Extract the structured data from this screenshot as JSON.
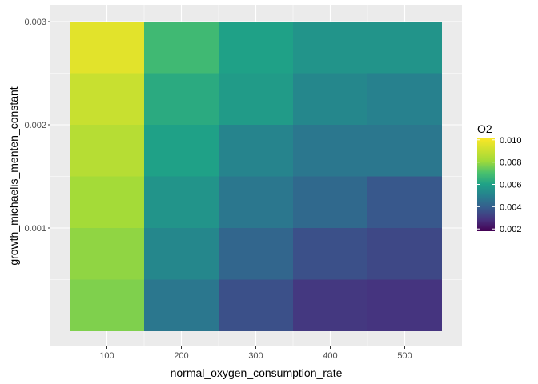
{
  "chart_data": {
    "type": "heatmap",
    "title": "",
    "xlabel": "normal_oxygen_consumption_rate",
    "ylabel": "growth_michaelis_menten_constant",
    "x": [
      100,
      200,
      300,
      400,
      500
    ],
    "y": [
      0.00025,
      0.00075,
      0.00125,
      0.00175,
      0.00225,
      0.00275
    ],
    "x_ticks": [
      "100",
      "200",
      "300",
      "400",
      "500"
    ],
    "y_ticks": [
      "0.001",
      "0.002",
      "0.003"
    ],
    "y_tick_values": [
      0.001,
      0.002,
      0.003
    ],
    "xlim": [
      50,
      550
    ],
    "ylim": [
      0,
      0.003
    ],
    "values": [
      [
        0.0077,
        0.0047,
        0.0036,
        0.003,
        0.0029
      ],
      [
        0.0079,
        0.0052,
        0.0042,
        0.0036,
        0.0034
      ],
      [
        0.0082,
        0.0056,
        0.0047,
        0.0043,
        0.0038
      ],
      [
        0.0086,
        0.006,
        0.0051,
        0.0047,
        0.0047
      ],
      [
        0.009,
        0.0063,
        0.0058,
        0.0052,
        0.005
      ],
      [
        0.0096,
        0.0068,
        0.006,
        0.0056,
        0.0056
      ]
    ],
    "legend": {
      "title": "O2",
      "position": "right",
      "min": 0.0018,
      "max": 0.0102,
      "ticks": [
        "0.010",
        "0.008",
        "0.006",
        "0.004",
        "0.002"
      ],
      "tick_values": [
        0.01,
        0.008,
        0.006,
        0.004,
        0.002
      ]
    },
    "colormap": "viridis",
    "panel_background": "#ebebeb",
    "grid": true
  }
}
